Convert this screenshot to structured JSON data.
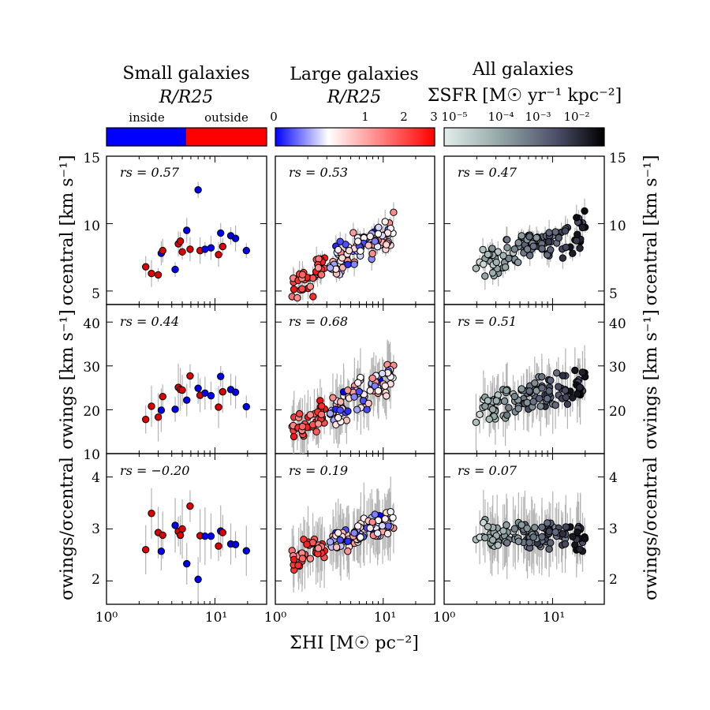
{
  "chart_data": {
    "type": "scatter",
    "xlabel": "ΣHI [M☉ pc⁻²]",
    "xscale": "log",
    "xlim": [
      1,
      30
    ],
    "x_tick_labels": [
      "10⁰",
      "10¹"
    ],
    "columns": [
      {
        "title": "Small galaxies",
        "colorbar_label": "R/R25",
        "colorbar_ticks": [
          "inside",
          "outside"
        ]
      },
      {
        "title": "Large galaxies",
        "colorbar_label": "R/R25",
        "colorbar_ticks": [
          "0",
          "1",
          "2",
          "3"
        ]
      },
      {
        "title": "All galaxies",
        "colorbar_label": "ΣSFR [M☉ yr⁻¹ kpc⁻²]",
        "colorbar_ticks": [
          "10⁻⁵",
          "10⁻⁴",
          "10⁻³",
          "10⁻²"
        ]
      }
    ],
    "rows": [
      {
        "ylabel": "σcentral [km s⁻¹]",
        "ylim": [
          4,
          15
        ],
        "y_tick_labels": [
          "5",
          "10",
          "15"
        ]
      },
      {
        "ylabel": "σwings [km s⁻¹]",
        "ylim": [
          10,
          44
        ],
        "y_tick_labels": [
          "10",
          "20",
          "30",
          "40"
        ]
      },
      {
        "ylabel": "σwings/σcentral",
        "ylim": [
          1.55,
          4.45
        ],
        "y_tick_labels": [
          "2",
          "3",
          "4"
        ]
      }
    ],
    "correlations": [
      [
        "rs = 0.57",
        "rs = 0.53",
        "rs = 0.47"
      ],
      [
        "rs = 0.44",
        "rs = 0.68",
        "rs = 0.51"
      ],
      [
        "rs = −0.20",
        "rs = 0.19",
        "rs = 0.07"
      ]
    ],
    "small_galaxies": {
      "x": [
        2.3,
        2.6,
        3.0,
        3.2,
        3.3,
        4.3,
        4.6,
        4.8,
        5.0,
        5.5,
        5.9,
        7.0,
        7.3,
        8.1,
        9.2,
        10.8,
        11.3,
        11.8,
        14.0,
        15.5,
        19.5
      ],
      "location": [
        "outside",
        "outside",
        "outside",
        "inside",
        "outside",
        "inside",
        "outside",
        "outside",
        "outside",
        "inside",
        "outside",
        "inside",
        "outside",
        "inside",
        "inside",
        "outside",
        "inside",
        "outside",
        "inside",
        "inside",
        "inside"
      ],
      "sigma_central": [
        6.8,
        6.3,
        6.2,
        7.8,
        8.0,
        6.6,
        8.5,
        8.7,
        7.9,
        9.5,
        8.1,
        12.5,
        8.0,
        8.1,
        8.2,
        7.7,
        9.3,
        8.3,
        9.1,
        8.9,
        8.0
      ],
      "sigma_wings": [
        17.8,
        20.8,
        18.3,
        19.9,
        23.0,
        20.1,
        25.1,
        24.6,
        24.5,
        22.2,
        27.7,
        24.9,
        23.3,
        23.8,
        23.2,
        20.6,
        27.6,
        24.1,
        24.6,
        24.0,
        20.7
      ],
      "ratio": [
        2.6,
        3.3,
        2.93,
        2.57,
        2.88,
        3.07,
        2.95,
        2.88,
        3.0,
        2.33,
        3.44,
        2.03,
        2.87,
        2.86,
        2.86,
        2.67,
        2.96,
        2.93,
        2.71,
        2.7,
        2.58
      ]
    }
  }
}
